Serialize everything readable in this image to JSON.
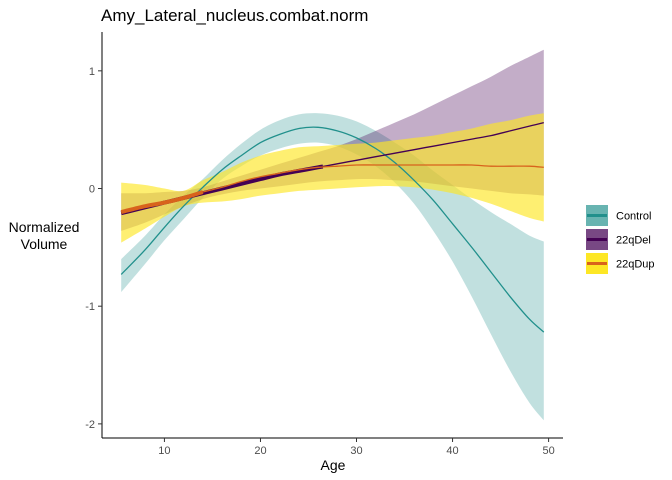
{
  "chart_data": {
    "type": "line",
    "title": "Amy_Lateral_nucleus.combat.norm",
    "xlabel": "Age",
    "ylabel_lines": [
      "Normalized",
      "Volume"
    ],
    "xlim": [
      3.5,
      51.5
    ],
    "ylim": [
      -2.12,
      1.33
    ],
    "x_ticks": [
      10,
      20,
      30,
      40,
      50
    ],
    "y_ticks": [
      -2,
      -1,
      0,
      1
    ],
    "grid": false,
    "legend_position": "right",
    "series": [
      {
        "name": "Control",
        "color": "#21908C",
        "fill": "#21908C",
        "fill_opacity": 0.28,
        "x": [
          5.5,
          8,
          10,
          12,
          14,
          16,
          18,
          20,
          22,
          24,
          26,
          28,
          30,
          32,
          34,
          36,
          38,
          40,
          42,
          44,
          46,
          48,
          49.5
        ],
        "y": [
          -0.73,
          -0.52,
          -0.33,
          -0.15,
          0.01,
          0.16,
          0.28,
          0.39,
          0.46,
          0.51,
          0.52,
          0.49,
          0.43,
          0.34,
          0.22,
          0.07,
          -0.1,
          -0.3,
          -0.5,
          -0.71,
          -0.92,
          -1.11,
          -1.22
        ],
        "upper": [
          -0.6,
          -0.4,
          -0.22,
          -0.06,
          0.08,
          0.24,
          0.38,
          0.5,
          0.58,
          0.63,
          0.64,
          0.62,
          0.57,
          0.49,
          0.39,
          0.28,
          0.15,
          0.03,
          -0.09,
          -0.2,
          -0.3,
          -0.4,
          -0.45
        ],
        "lower": [
          -0.88,
          -0.64,
          -0.44,
          -0.26,
          -0.08,
          0.08,
          0.19,
          0.28,
          0.34,
          0.38,
          0.39,
          0.36,
          0.29,
          0.19,
          0.05,
          -0.13,
          -0.36,
          -0.62,
          -0.92,
          -1.24,
          -1.55,
          -1.82,
          -1.97
        ]
      },
      {
        "name": "22qDel",
        "color": "#440154",
        "fill": "#440154",
        "fill_opacity": 0.32,
        "x": [
          5.5,
          8,
          10,
          12,
          14,
          16,
          18,
          20,
          22,
          24,
          26,
          28,
          30,
          32,
          34,
          36,
          38,
          40,
          42,
          44,
          46,
          48,
          49.5
        ],
        "y": [
          -0.21,
          -0.16,
          -0.12,
          -0.08,
          -0.04,
          0.0,
          0.04,
          0.08,
          0.12,
          0.15,
          0.18,
          0.21,
          0.24,
          0.27,
          0.3,
          0.33,
          0.36,
          0.39,
          0.42,
          0.45,
          0.49,
          0.53,
          0.56
        ],
        "upper": [
          -0.04,
          -0.04,
          -0.03,
          -0.02,
          0.01,
          0.06,
          0.11,
          0.16,
          0.21,
          0.26,
          0.31,
          0.36,
          0.42,
          0.49,
          0.56,
          0.63,
          0.71,
          0.79,
          0.87,
          0.95,
          1.04,
          1.12,
          1.18
        ],
        "lower": [
          -0.36,
          -0.29,
          -0.22,
          -0.15,
          -0.09,
          -0.05,
          -0.02,
          0.0,
          0.02,
          0.04,
          0.06,
          0.07,
          0.08,
          0.08,
          0.07,
          0.06,
          0.04,
          0.02,
          0.0,
          -0.02,
          -0.04,
          -0.05,
          -0.06
        ],
        "thick_range": [
          5.5,
          26.5
        ]
      },
      {
        "name": "22qDup",
        "color": "#D8631C",
        "fill": "#FDE725",
        "fill_opacity": 0.65,
        "x": [
          5.5,
          8,
          10,
          12,
          14,
          16,
          18,
          20,
          22,
          24,
          26,
          28,
          30,
          32,
          34,
          36,
          38,
          40,
          42,
          44,
          46,
          48,
          49.5
        ],
        "y": [
          -0.2,
          -0.15,
          -0.12,
          -0.08,
          -0.03,
          0.01,
          0.06,
          0.1,
          0.13,
          0.16,
          0.18,
          0.19,
          0.2,
          0.2,
          0.2,
          0.2,
          0.2,
          0.2,
          0.2,
          0.19,
          0.19,
          0.19,
          0.18
        ],
        "upper": [
          0.05,
          0.03,
          0.0,
          -0.02,
          0.07,
          0.14,
          0.22,
          0.28,
          0.32,
          0.35,
          0.36,
          0.37,
          0.38,
          0.39,
          0.41,
          0.43,
          0.45,
          0.48,
          0.51,
          0.55,
          0.58,
          0.62,
          0.64
        ],
        "lower": [
          -0.46,
          -0.34,
          -0.24,
          -0.15,
          -0.12,
          -0.11,
          -0.09,
          -0.06,
          -0.04,
          -0.02,
          -0.01,
          0.0,
          0.01,
          0.02,
          0.02,
          0.01,
          -0.01,
          -0.04,
          -0.08,
          -0.13,
          -0.19,
          -0.25,
          -0.28
        ],
        "thick_range": [
          5.5,
          14
        ]
      }
    ]
  }
}
